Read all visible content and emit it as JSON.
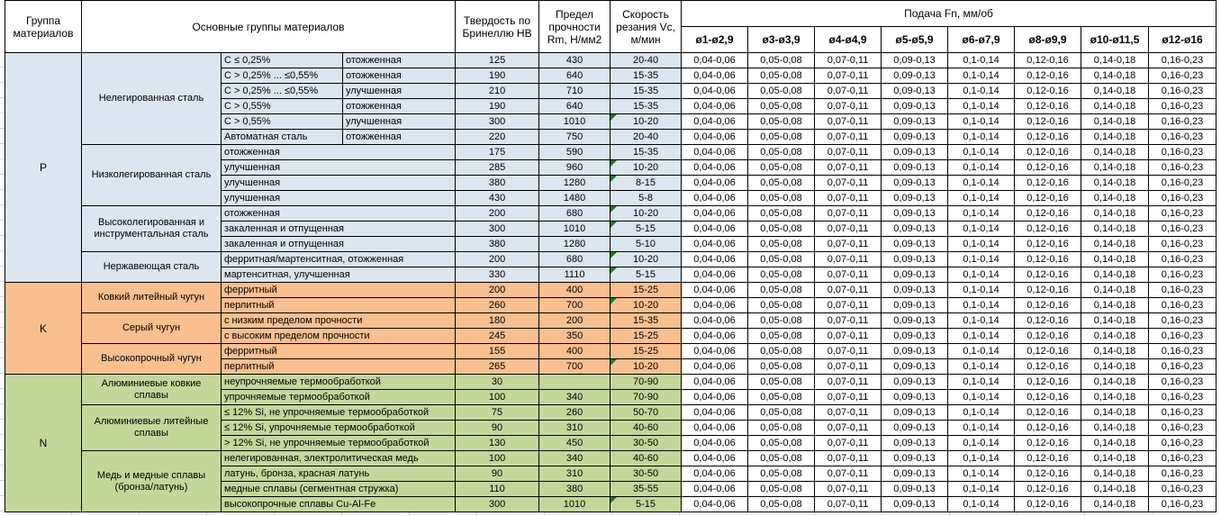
{
  "header": {
    "col_group": "Группа материалов",
    "col_main": "Основные группы материалов",
    "col_hb": "Твердость по Бринеллю HB",
    "col_rm": "Предел прочности Rm, Н/мм2",
    "col_vc": "Скорость резания Vc, м/мин",
    "feed_title": "Подача Fn, мм/об",
    "feed_cols": [
      "ø1-ø2,9",
      "ø3-ø3,9",
      "ø4-ø4,9",
      "ø5-ø5,9",
      "ø6-ø7,9",
      "ø8-ø9,9",
      "ø10-ø11,5",
      "ø12-ø16"
    ]
  },
  "colors": {
    "p_blue": "#DCE6F1",
    "k_orange": "#FABF8F",
    "n_green": "#C4D79B",
    "marker_green": "#1F7A1F"
  },
  "feed_values": [
    "0,04-0,06",
    "0,05-0,08",
    "0,07-0,11",
    "0,09-0,13",
    "0,1-0,14",
    "0,12-0,16",
    "0,14-0,18",
    "0,16-0,23"
  ],
  "groups": [
    {
      "code": "P",
      "color": "p_blue",
      "subgroups": [
        {
          "name": "Нелегированная сталь",
          "rows": [
            {
              "cond": "C ≤ 0,25%",
              "state": "отожженная",
              "hb": "125",
              "rm": "430",
              "vc": "20-40",
              "marker": false
            },
            {
              "cond": "C > 0,25% ... ≤0,55%",
              "state": "отожженная",
              "hb": "190",
              "rm": "640",
              "vc": "15-35",
              "marker": false
            },
            {
              "cond": "C > 0,25% ... ≤0,55%",
              "state": "улучшенная",
              "hb": "210",
              "rm": "710",
              "vc": "15-35",
              "marker": false
            },
            {
              "cond": "C > 0,55%",
              "state": "отожженная",
              "hb": "190",
              "rm": "640",
              "vc": "15-35",
              "marker": false
            },
            {
              "cond": "C > 0,55%",
              "state": "улучшенная",
              "hb": "300",
              "rm": "1010",
              "vc": "10-20",
              "marker": true
            },
            {
              "cond": "Автоматная сталь",
              "state": "отожженная",
              "hb": "220",
              "rm": "750",
              "vc": "20-40",
              "marker": false
            }
          ]
        },
        {
          "name": "Низколегированная сталь",
          "rows": [
            {
              "desc": "отожженная",
              "hb": "175",
              "rm": "590",
              "vc": "15-35",
              "marker": false
            },
            {
              "desc": "улучшенная",
              "hb": "285",
              "rm": "960",
              "vc": "10-20",
              "marker": true
            },
            {
              "desc": "улучшенная",
              "hb": "380",
              "rm": "1280",
              "vc": "8-15",
              "marker": true
            },
            {
              "desc": "улучшенная",
              "hb": "430",
              "rm": "1480",
              "vc": "5-8",
              "marker": false
            }
          ]
        },
        {
          "name": "Высоколегированная и инструментальная сталь",
          "rows": [
            {
              "desc": "отожженная",
              "hb": "200",
              "rm": "680",
              "vc": "10-20",
              "marker": true
            },
            {
              "desc": "закаленная и отпущенная",
              "hb": "300",
              "rm": "1010",
              "vc": "5-15",
              "marker": true
            },
            {
              "desc": "закаленная и отпущенная",
              "hb": "380",
              "rm": "1280",
              "vc": "5-10",
              "marker": false
            }
          ]
        },
        {
          "name": "Нержавеющая сталь",
          "rows": [
            {
              "desc": "ферритная/мартенситная, отожженная",
              "hb": "200",
              "rm": "680",
              "vc": "10-20",
              "marker": true
            },
            {
              "desc": "мартенситная, улучшенная",
              "hb": "330",
              "rm": "1110",
              "vc": "5-15",
              "marker": true
            }
          ]
        }
      ]
    },
    {
      "code": "K",
      "color": "k_orange",
      "subgroups": [
        {
          "name": "Ковкий литейный чугун",
          "rows": [
            {
              "desc": "ферритный",
              "hb": "200",
              "rm": "400",
              "vc": "15-25",
              "marker": false
            },
            {
              "desc": "перлитный",
              "hb": "260",
              "rm": "700",
              "vc": "10-20",
              "marker": true
            }
          ]
        },
        {
          "name": "Серый чугун",
          "rows": [
            {
              "desc": "с низким пределом прочности",
              "hb": "180",
              "rm": "200",
              "vc": "15-35",
              "marker": false
            },
            {
              "desc": "с высоким пределом прочности",
              "hb": "245",
              "rm": "350",
              "vc": "15-25",
              "marker": false
            }
          ]
        },
        {
          "name": "Высокопрочный чугун",
          "rows": [
            {
              "desc": "ферритный",
              "hb": "155",
              "rm": "400",
              "vc": "15-25",
              "marker": false
            },
            {
              "desc": "перлитный",
              "hb": "265",
              "rm": "700",
              "vc": "10-20",
              "marker": true
            }
          ]
        }
      ]
    },
    {
      "code": "N",
      "color": "n_green",
      "subgroups": [
        {
          "name": "Алюминиевые ковкие сплавы",
          "rows": [
            {
              "desc": "неупрочняемые термообработкой",
              "hb": "30",
              "rm": "",
              "vc": "70-90",
              "marker": false
            },
            {
              "desc": "упрочняемые термообработкой",
              "hb": "100",
              "rm": "340",
              "vc": "70-90",
              "marker": false
            }
          ]
        },
        {
          "name": "Алюминиевые литейные сплавы",
          "rows": [
            {
              "desc": "≤ 12% Si, не упрочняемые термообработкой",
              "hb": "75",
              "rm": "260",
              "vc": "50-70",
              "marker": false
            },
            {
              "desc": "≤ 12% Si, упрочняемые термообработкой",
              "hb": "90",
              "rm": "310",
              "vc": "40-60",
              "marker": false
            },
            {
              "desc": "> 12% Si, не упрочняемые термообработкой",
              "hb": "130",
              "rm": "450",
              "vc": "30-50",
              "marker": false
            }
          ]
        },
        {
          "name": "Медь и медные сплавы (бронза/латунь)",
          "rows": [
            {
              "desc": "нелегированная, электролитическая медь",
              "hb": "100",
              "rm": "340",
              "vc": "40-60",
              "marker": false
            },
            {
              "desc": "латунь, бронза, красная латунь",
              "hb": "90",
              "rm": "310",
              "vc": "30-50",
              "marker": false
            },
            {
              "desc": "медные сплавы (сегментная стружка)",
              "hb": "110",
              "rm": "380",
              "vc": "35-55",
              "marker": false
            },
            {
              "desc": "высокопрочные сплавы Cu-Al-Fe",
              "hb": "300",
              "rm": "1010",
              "vc": "5-15",
              "marker": true
            }
          ]
        }
      ]
    }
  ]
}
